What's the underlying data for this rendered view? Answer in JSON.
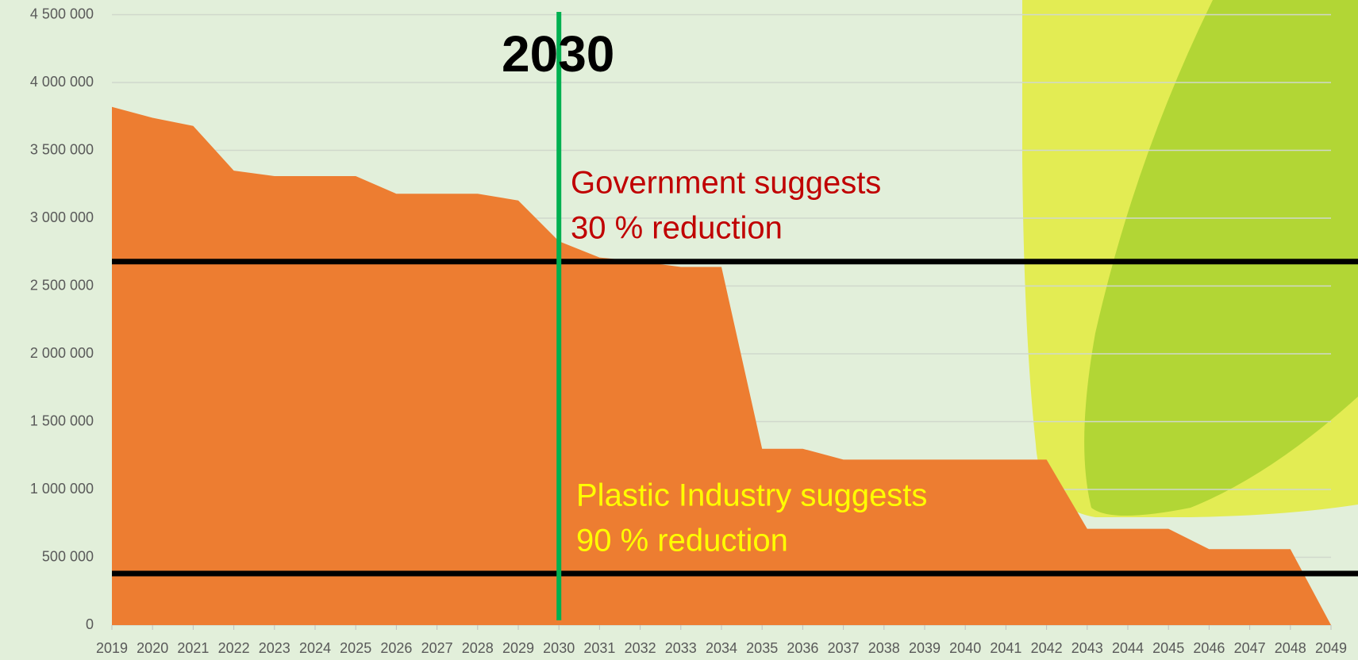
{
  "chart_data": {
    "type": "area",
    "categories": [
      "2019",
      "2020",
      "2021",
      "2022",
      "2023",
      "2024",
      "2025",
      "2026",
      "2027",
      "2028",
      "2029",
      "2030",
      "2031",
      "2032",
      "2033",
      "2034",
      "2035",
      "2036",
      "2037",
      "2038",
      "2039",
      "2040",
      "2041",
      "2042",
      "2043",
      "2044",
      "2045",
      "2046",
      "2047",
      "2048",
      "2049"
    ],
    "values": [
      3820000,
      3740000,
      3680000,
      3350000,
      3310000,
      3310000,
      3310000,
      3180000,
      3180000,
      3180000,
      3130000,
      2830000,
      2710000,
      2680000,
      2640000,
      2640000,
      1300000,
      1300000,
      1220000,
      1220000,
      1220000,
      1220000,
      1220000,
      1220000,
      710000,
      710000,
      710000,
      560000,
      560000,
      560000,
      0
    ],
    "color": "#ed7d31",
    "ylim": [
      0,
      4500000
    ],
    "yticks": [
      0,
      {
        "value": 500000,
        "label": "500 000"
      },
      {
        "value": 1000000,
        "label": "1 000 000"
      },
      {
        "value": 1500000,
        "label": "1 500 000"
      },
      {
        "value": 2000000,
        "label": "2 000 000"
      },
      {
        "value": 2500000,
        "label": "2 500 000"
      },
      {
        "value": 3000000,
        "label": "3 000 000"
      },
      {
        "value": 3500000,
        "label": "3 500 000"
      },
      {
        "value": 4000000,
        "label": "4 000 000"
      },
      {
        "value": 4500000,
        "label": "4 500 000"
      }
    ],
    "grid": true,
    "highlight": "2030",
    "highlight_color": "#00b050",
    "reference_lines": [
      {
        "value": 2680000,
        "label": [
          "Government suggests",
          "30 % reduction"
        ],
        "label_color": "#c00000"
      },
      {
        "value": 380000,
        "label": [
          "Plastic Industry suggests",
          "90 % reduction"
        ],
        "label_color": "#ffff00"
      }
    ]
  }
}
